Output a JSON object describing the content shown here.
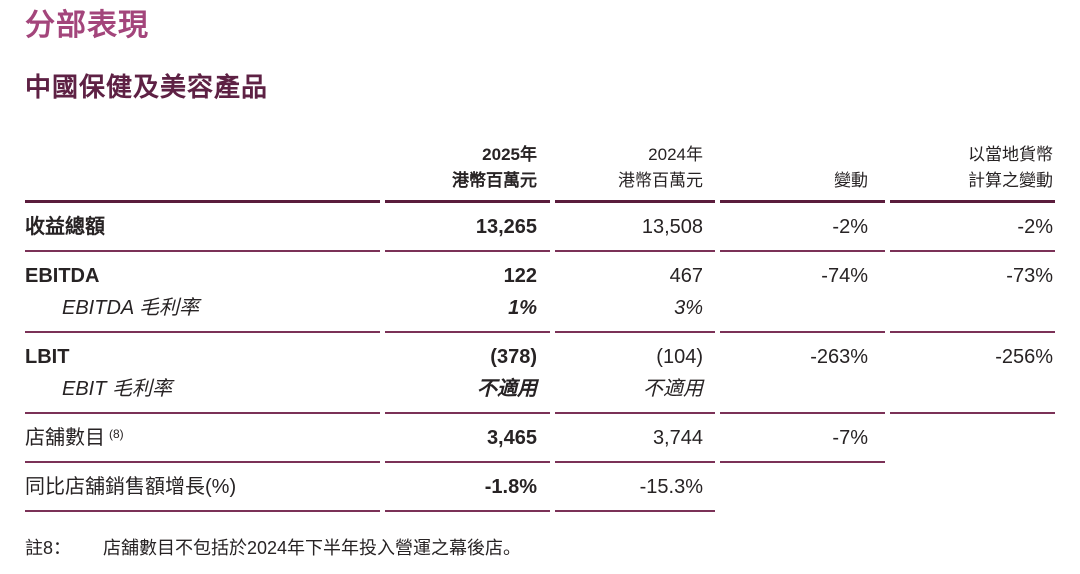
{
  "page": {
    "title": "分部表現",
    "subtitle": "中國保健及美容產品"
  },
  "colors": {
    "title_accent": "#A3457B",
    "subtitle_accent": "#5E2144",
    "rule_thick": "#5A1C3C",
    "rule_thin": "#7B3157",
    "text": "#272324"
  },
  "table": {
    "headers": [
      {
        "lines": [
          "2025年",
          "港幣百萬元"
        ],
        "emphasis": true
      },
      {
        "lines": [
          "2024年",
          "港幣百萬元"
        ],
        "emphasis": false
      },
      {
        "lines": [
          "變動"
        ],
        "emphasis": false
      },
      {
        "lines": [
          "以當地貨幣",
          "計算之變動"
        ],
        "emphasis": false
      }
    ],
    "groups": [
      {
        "rule_cols": 5,
        "rows": [
          {
            "label": "收益總額",
            "bold": true,
            "values": [
              "13,265",
              "13,508",
              "-2%",
              "-2%"
            ]
          }
        ]
      },
      {
        "rule_cols": 5,
        "rows": [
          {
            "label": "EBITDA",
            "bold": true,
            "values": [
              "122",
              "467",
              "-74%",
              "-73%"
            ]
          },
          {
            "label": "EBITDA 毛利率",
            "italic": true,
            "indent": true,
            "values": [
              "1%",
              "3%",
              "",
              ""
            ]
          }
        ]
      },
      {
        "rule_cols": 5,
        "rows": [
          {
            "label": "LBIT",
            "bold": true,
            "values": [
              "(378)",
              "(104)",
              "-263%",
              "-256%"
            ]
          },
          {
            "label": "EBIT 毛利率",
            "italic": true,
            "indent": true,
            "values": [
              "不適用",
              "不適用",
              "",
              ""
            ]
          }
        ]
      },
      {
        "rule_cols": 4,
        "rows": [
          {
            "label": "店舖數目",
            "superscript": "(8)",
            "values": [
              "3,465",
              "3,744",
              "-7%",
              ""
            ]
          }
        ]
      },
      {
        "rule_cols": 3,
        "rows": [
          {
            "label": "同比店舖銷售額增長(%)",
            "values": [
              "-1.8%",
              "-15.3%",
              "",
              ""
            ]
          }
        ]
      }
    ]
  },
  "footnote": {
    "label": "註8：",
    "text": "店舖數目不包括於2024年下半年投入營運之幕後店。"
  }
}
